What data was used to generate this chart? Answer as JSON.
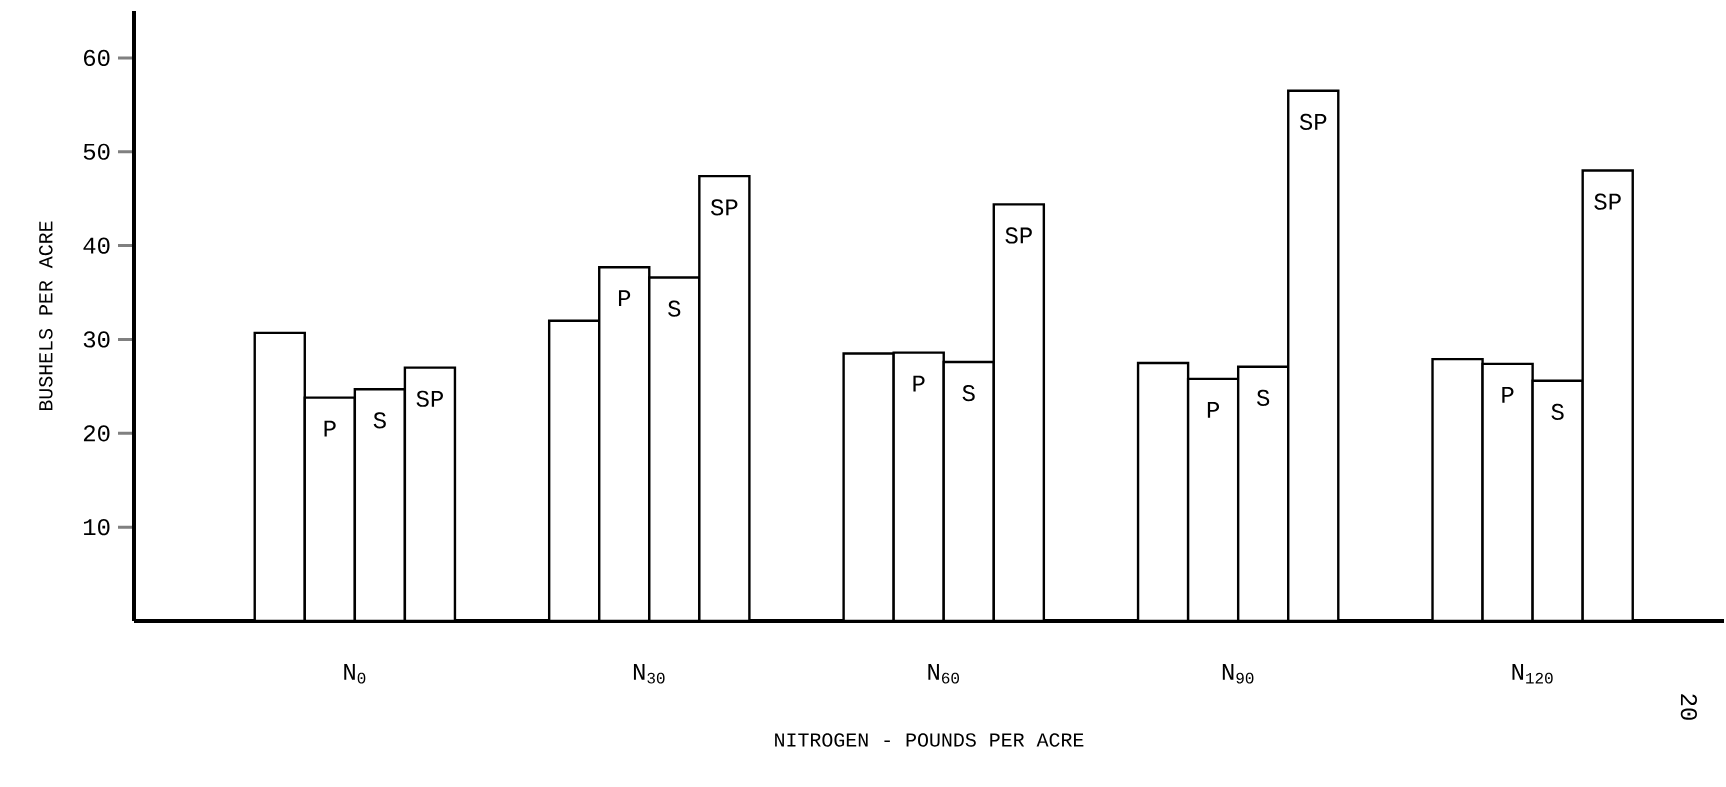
{
  "chart_data": {
    "type": "bar",
    "xlabel": "NITROGEN - POUNDS PER ACRE",
    "ylabel": "BUSHELS PER ACRE",
    "categories": [
      "N$_{0}$",
      "N$_{30}$",
      "N$_{60}$",
      "N$_{90}$",
      "N$_{120}$"
    ],
    "series": [
      {
        "color": "#ffffff",
        "values": [
          30.7,
          32.0,
          28.5,
          27.5,
          27.9
        ]
      },
      {
        "name": "P",
        "color": "#ffffff",
        "values": [
          23.8,
          37.7,
          28.6,
          25.8,
          27.4
        ]
      },
      {
        "name": "S",
        "color": "#ffffff",
        "values": [
          24.7,
          36.6,
          27.6,
          27.1,
          25.6
        ]
      },
      {
        "name": "SP",
        "color": "#ffffff",
        "values": [
          27.0,
          47.4,
          44.4,
          56.5,
          48.0
        ]
      }
    ],
    "ylim": [
      0,
      65
    ],
    "yticks": [
      10,
      20,
      30,
      40,
      50,
      60
    ],
    "grid": false,
    "legend": false,
    "annotations": [
      "20"
    ]
  }
}
